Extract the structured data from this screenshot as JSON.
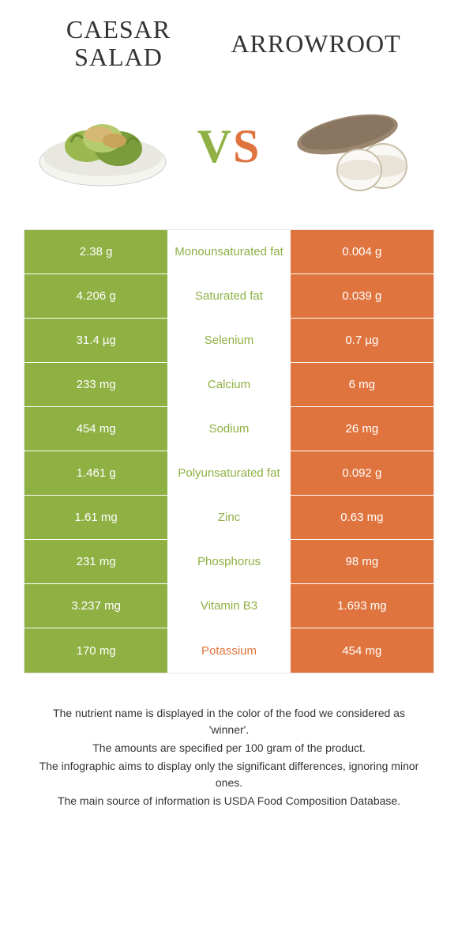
{
  "title_left": "Caesar salad",
  "title_right": "Arrowroot",
  "vs_v": "V",
  "vs_s": "S",
  "colors": {
    "left": "#8fb043",
    "right": "#e0743e",
    "background": "#ffffff",
    "border": "#e8e8e8"
  },
  "rows": [
    {
      "left": "2.38 g",
      "mid": "Monounsaturated fat",
      "right": "0.004 g",
      "winner": "left"
    },
    {
      "left": "4.206 g",
      "mid": "Saturated fat",
      "right": "0.039 g",
      "winner": "left"
    },
    {
      "left": "31.4 µg",
      "mid": "Selenium",
      "right": "0.7 µg",
      "winner": "left"
    },
    {
      "left": "233 mg",
      "mid": "Calcium",
      "right": "6 mg",
      "winner": "left"
    },
    {
      "left": "454 mg",
      "mid": "Sodium",
      "right": "26 mg",
      "winner": "left"
    },
    {
      "left": "1.461 g",
      "mid": "Polyunsaturated fat",
      "right": "0.092 g",
      "winner": "left"
    },
    {
      "left": "1.61 mg",
      "mid": "Zinc",
      "right": "0.63 mg",
      "winner": "left"
    },
    {
      "left": "231 mg",
      "mid": "Phosphorus",
      "right": "98 mg",
      "winner": "left"
    },
    {
      "left": "3.237 mg",
      "mid": "Vitamin B3",
      "right": "1.693 mg",
      "winner": "left"
    },
    {
      "left": "170 mg",
      "mid": "Potassium",
      "right": "454 mg",
      "winner": "right"
    }
  ],
  "footnotes": [
    "The nutrient name is displayed in the color of the food we considered as 'winner'.",
    "The amounts are specified per 100 gram of the product.",
    "The infographic aims to display only the significant differences, ignoring minor ones.",
    "The main source of information is USDA Food Composition Database."
  ]
}
